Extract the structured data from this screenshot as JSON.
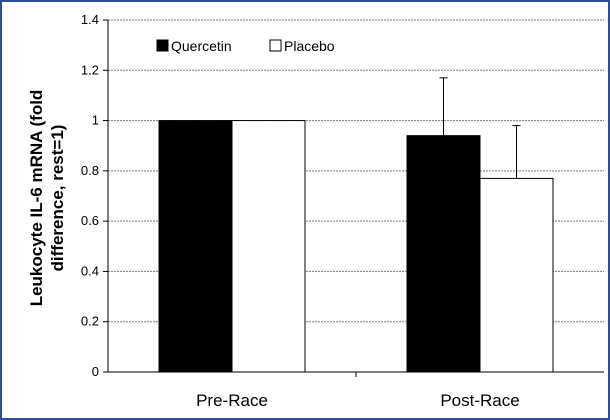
{
  "chart_data": {
    "type": "bar",
    "categories": [
      "Pre-Race",
      "Post-Race"
    ],
    "series": [
      {
        "name": "Quercetin",
        "values": [
          1.0,
          0.94
        ],
        "error_plus": [
          0,
          0.23
        ],
        "color": "#000000"
      },
      {
        "name": "Placebo",
        "values": [
          1.0,
          0.77
        ],
        "error_plus": [
          0,
          0.21
        ],
        "color": "#ffffff"
      }
    ],
    "ylabel_line1": "Leukocyte IL-6 mRNA (fold",
    "ylabel_line2": "difference, rest=1)",
    "ylim": [
      0,
      1.4
    ],
    "yticks": [
      "0",
      "0.2",
      "0.4",
      "0.6",
      "0.8",
      "1",
      "1.2",
      "1.4"
    ],
    "grid": true,
    "legend_position": "top-left"
  }
}
